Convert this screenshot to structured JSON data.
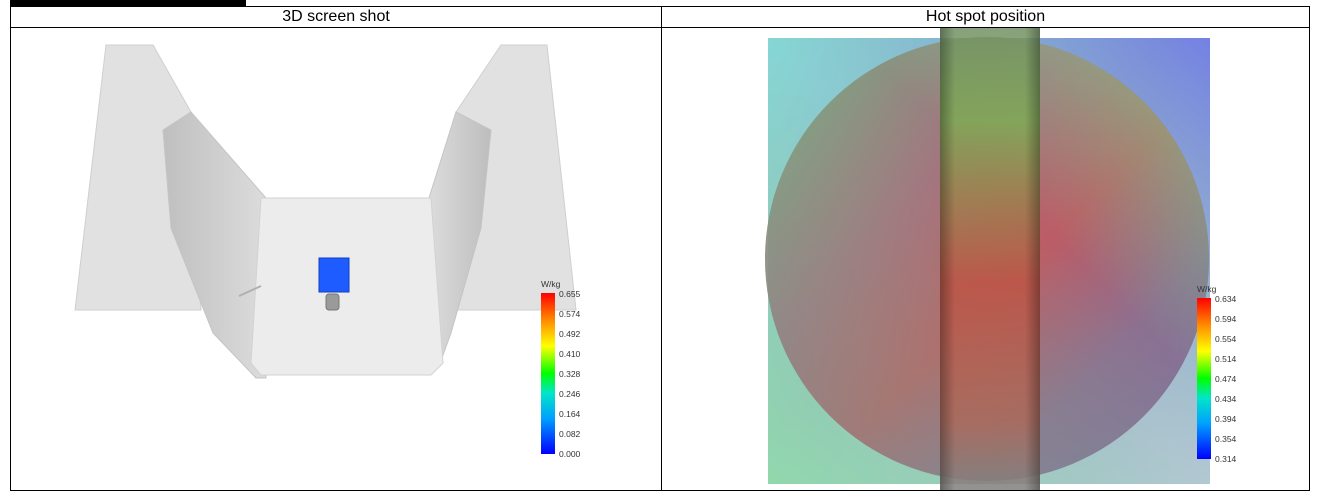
{
  "headers": {
    "left": "3D screen shot",
    "right": "Hot spot position"
  },
  "legend_3d": {
    "unit": "W/kg",
    "ticks": [
      "0.655",
      "0.574",
      "0.492",
      "0.410",
      "0.328",
      "0.246",
      "0.164",
      "0.082",
      "0.000"
    ]
  },
  "legend_hotspot": {
    "unit": "W/kg",
    "ticks": [
      "0.634",
      "0.594",
      "0.554",
      "0.514",
      "0.474",
      "0.434",
      "0.394",
      "0.354",
      "0.314"
    ]
  },
  "colors": {
    "phantom_gray": "#d9d9d9",
    "probe_blue": "#1e5cff",
    "scale": [
      "#ff0000",
      "#ffff00",
      "#00ff00",
      "#00a0ff",
      "#0000ff"
    ]
  }
}
